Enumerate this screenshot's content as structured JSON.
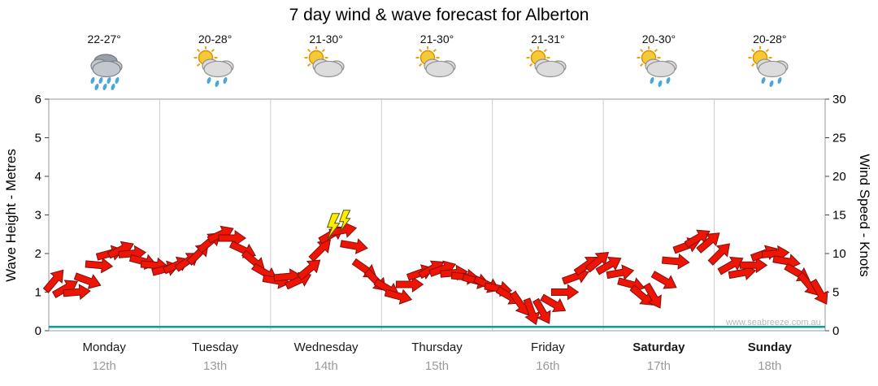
{
  "title": "7 day wind & wave forecast for Alberton",
  "watermark": "www.seabreeze.com.au",
  "axes": {
    "left_title": "Wave Height - Metres",
    "right_title": "Wind Speed - Knots",
    "left_ticks": [
      0,
      1,
      2,
      3,
      4,
      5,
      6
    ],
    "right_ticks": [
      0,
      5,
      10,
      15,
      20,
      25,
      30
    ]
  },
  "days": [
    {
      "name": "Monday",
      "date": "12th",
      "temp": "22-27°",
      "icon": "rain",
      "bold": false
    },
    {
      "name": "Tuesday",
      "date": "13th",
      "temp": "20-28°",
      "icon": "sun-cloud-rain",
      "bold": false
    },
    {
      "name": "Wednesday",
      "date": "14th",
      "temp": "21-30°",
      "icon": "sun-cloud",
      "bold": false
    },
    {
      "name": "Thursday",
      "date": "15th",
      "temp": "21-30°",
      "icon": "sun-cloud",
      "bold": false
    },
    {
      "name": "Friday",
      "date": "16th",
      "temp": "21-31°",
      "icon": "sun-cloud",
      "bold": false
    },
    {
      "name": "Saturday",
      "date": "17th",
      "temp": "20-30°",
      "icon": "sun-cloud-rain",
      "bold": true
    },
    {
      "name": "Sunday",
      "date": "18th",
      "temp": "20-28°",
      "icon": "sun-cloud-rain",
      "bold": true
    }
  ],
  "chart_data": {
    "type": "line",
    "title": "7 day wind & wave forecast for Alberton",
    "categories": [
      "Monday 12th",
      "Tuesday 13th",
      "Wednesday 14th",
      "Thursday 15th",
      "Friday 16th",
      "Saturday 17th",
      "Sunday 18th"
    ],
    "left_axis": {
      "label": "Wave Height - Metres",
      "ylim": [
        0,
        6
      ]
    },
    "right_axis": {
      "label": "Wind Speed - Knots",
      "ylim": [
        0,
        30
      ]
    },
    "grid": "vertical-day-separators",
    "legend": "none",
    "series": [
      {
        "name": "Wind Speed",
        "axis": "right",
        "unit": "knots",
        "marker": "red-arrow",
        "points_per_day": 10,
        "speeds_knots": [
          6.5,
          5.5,
          5,
          6.5,
          8.5,
          10,
          10.5,
          10,
          9,
          8.5,
          8,
          8.5,
          9,
          10,
          11.5,
          12.5,
          12,
          10.5,
          9,
          7.5,
          6.5,
          7,
          6.5,
          8,
          10.5,
          12.5,
          13,
          11,
          8,
          6.5,
          5.5,
          4.5,
          6,
          7.5,
          8,
          8,
          7.5,
          7,
          6.5,
          6,
          5.5,
          4.5,
          3.5,
          2.5,
          2.5,
          3.5,
          5,
          7,
          8.5,
          9,
          8.5,
          7.5,
          6,
          4.5,
          4.5,
          6.5,
          9,
          11,
          12,
          11.5,
          10,
          8.5,
          7.5,
          8.5,
          10,
          10,
          9,
          7.5,
          6,
          5
        ],
        "directions_deg": [
          40,
          60,
          85,
          110,
          95,
          75,
          65,
          85,
          105,
          95,
          75,
          65,
          55,
          45,
          50,
          65,
          90,
          115,
          130,
          120,
          100,
          85,
          65,
          50,
          45,
          60,
          80,
          100,
          125,
          135,
          120,
          105,
          90,
          70,
          60,
          70,
          85,
          95,
          105,
          115,
          100,
          120,
          145,
          160,
          150,
          120,
          90,
          70,
          55,
          50,
          60,
          80,
          105,
          130,
          150,
          120,
          95,
          70,
          60,
          50,
          45,
          60,
          80,
          90,
          70,
          85,
          100,
          120,
          140,
          150
        ]
      },
      {
        "name": "Wave Height",
        "axis": "left",
        "unit": "metres",
        "marker": "line",
        "values_m": [
          0.1,
          0.1,
          0.1,
          0.1,
          0.1,
          0.1,
          0.1,
          0.1
        ]
      }
    ],
    "annotations": [
      {
        "type": "storm-lightning",
        "day": "Wednesday",
        "day_index": 2,
        "frac": 0.57,
        "knots": 13.5
      }
    ]
  },
  "colors": {
    "arrow_fill": "#ee1505",
    "arrow_stroke": "#801010",
    "wave_line": "#00a3a3",
    "grid": "#cccccc",
    "frame": "#999999",
    "tick_text": "#000000",
    "date_text": "#9a9a9a",
    "bolt_fill": "#ffee00",
    "bolt_stroke": "#555500"
  }
}
